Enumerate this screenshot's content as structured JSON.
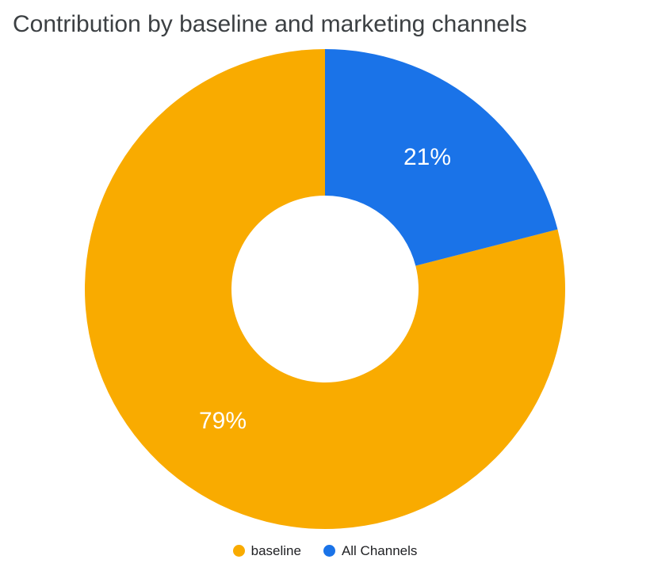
{
  "chart_data": {
    "type": "pie",
    "donut": true,
    "title": "Contribution by baseline and marketing channels",
    "slices": [
      {
        "label": "baseline",
        "value": 79,
        "pct_label": "79%",
        "color": "#F9AB00"
      },
      {
        "label": "All Channels",
        "value": 21,
        "pct_label": "21%",
        "color": "#1A73E8"
      }
    ],
    "start_angle_deg": 0,
    "direction": "counterclockwise",
    "inner_radius_ratio": 0.39,
    "legend_position": "bottom",
    "slice_label_color": "#FFFFFF",
    "slice_label_font_px": 30,
    "title_color": "#3C4043",
    "legend_text_color": "#202124"
  }
}
